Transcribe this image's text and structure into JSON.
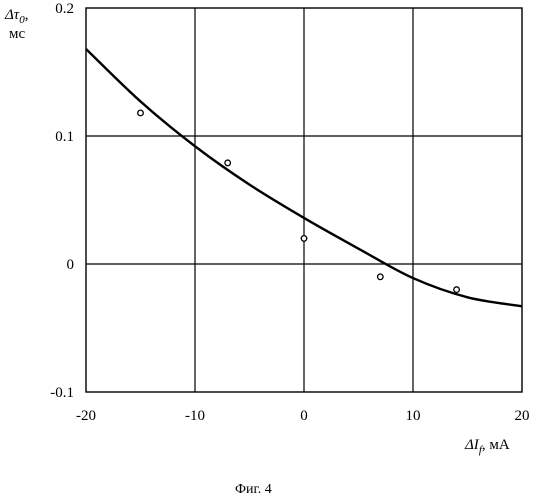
{
  "chart_data": {
    "type": "scatter",
    "title": "",
    "caption": "Фиг. 4",
    "xlabel": {
      "symbol": "ΔI",
      "subscript": "f",
      "unit": ", мА"
    },
    "ylabel": {
      "symbol": "Δτ",
      "subscript": "0",
      "suffix": ",",
      "unit": "мс"
    },
    "xlim": [
      -20,
      20
    ],
    "ylim": [
      -0.1,
      0.2
    ],
    "grid": true,
    "x_ticks": [
      -20,
      -10,
      0,
      10,
      20
    ],
    "x_tick_labels": [
      "-20",
      "-10",
      "0",
      "10",
      "20"
    ],
    "y_ticks": [
      -0.1,
      0,
      0.1,
      0.2
    ],
    "y_tick_labels": [
      "-0.1",
      "0",
      "0.1",
      "0.2"
    ],
    "series": [
      {
        "kind": "points",
        "marker": "open-circle",
        "x": [
          -15,
          -7,
          0,
          7,
          14
        ],
        "y": [
          0.118,
          0.079,
          0.02,
          -0.01,
          -0.02
        ]
      },
      {
        "kind": "fit-curve",
        "x": [
          -20,
          -15,
          -10,
          -5,
          0,
          5,
          10,
          15,
          20
        ],
        "y": [
          0.168,
          0.127,
          0.092,
          0.062,
          0.036,
          0.012,
          -0.011,
          -0.026,
          -0.033
        ]
      }
    ]
  }
}
